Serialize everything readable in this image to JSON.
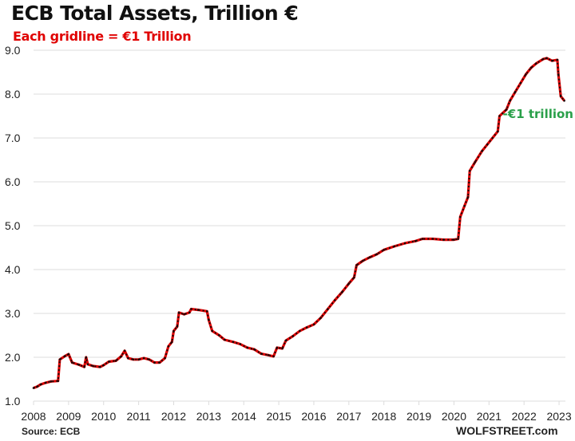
{
  "chart_data": {
    "type": "line",
    "title": "ECB Total Assets, Trillion €",
    "subtitle": "Each gridline = €1 Trillion",
    "xlabel": "",
    "ylabel": "",
    "source": "Source: ECB",
    "brand": "WOLFSTREET.com",
    "xlim": [
      2008,
      2023.15
    ],
    "ylim": [
      1.0,
      9.0
    ],
    "grid": true,
    "x_ticks": [
      "2008",
      "2009",
      "2010",
      "2011",
      "2012",
      "2013",
      "2014",
      "2015",
      "2016",
      "2017",
      "2018",
      "2019",
      "2020",
      "2021",
      "2022",
      "2023"
    ],
    "y_ticks": [
      "1.0",
      "2.0",
      "3.0",
      "4.0",
      "5.0",
      "6.0",
      "7.0",
      "8.0",
      "9.0"
    ],
    "annotations": [
      {
        "text": "-€1 trillion",
        "x": 2023.15,
        "y": 7.55,
        "color": "#2aa04a"
      }
    ],
    "series": [
      {
        "name": "ECB Total Assets",
        "color": "#e00000",
        "marker_color": "#1a0a0a",
        "points": [
          [
            2008.0,
            1.3
          ],
          [
            2008.1,
            1.33
          ],
          [
            2008.2,
            1.38
          ],
          [
            2008.35,
            1.42
          ],
          [
            2008.5,
            1.45
          ],
          [
            2008.7,
            1.46
          ],
          [
            2008.75,
            1.95
          ],
          [
            2008.9,
            2.03
          ],
          [
            2009.0,
            2.07
          ],
          [
            2009.1,
            1.88
          ],
          [
            2009.3,
            1.83
          ],
          [
            2009.45,
            1.78
          ],
          [
            2009.5,
            2.0
          ],
          [
            2009.55,
            1.84
          ],
          [
            2009.7,
            1.8
          ],
          [
            2009.9,
            1.78
          ],
          [
            2010.0,
            1.82
          ],
          [
            2010.15,
            1.9
          ],
          [
            2010.35,
            1.92
          ],
          [
            2010.5,
            2.02
          ],
          [
            2010.6,
            2.15
          ],
          [
            2010.7,
            1.98
          ],
          [
            2010.85,
            1.95
          ],
          [
            2011.0,
            1.95
          ],
          [
            2011.15,
            1.98
          ],
          [
            2011.3,
            1.95
          ],
          [
            2011.45,
            1.88
          ],
          [
            2011.6,
            1.88
          ],
          [
            2011.75,
            1.98
          ],
          [
            2011.85,
            2.25
          ],
          [
            2011.95,
            2.35
          ],
          [
            2012.0,
            2.6
          ],
          [
            2012.1,
            2.7
          ],
          [
            2012.15,
            3.02
          ],
          [
            2012.3,
            2.98
          ],
          [
            2012.45,
            3.02
          ],
          [
            2012.5,
            3.1
          ],
          [
            2012.7,
            3.08
          ],
          [
            2012.95,
            3.05
          ],
          [
            2013.0,
            2.85
          ],
          [
            2013.1,
            2.6
          ],
          [
            2013.3,
            2.5
          ],
          [
            2013.45,
            2.4
          ],
          [
            2013.7,
            2.35
          ],
          [
            2013.9,
            2.3
          ],
          [
            2014.1,
            2.22
          ],
          [
            2014.3,
            2.18
          ],
          [
            2014.5,
            2.08
          ],
          [
            2014.7,
            2.05
          ],
          [
            2014.85,
            2.02
          ],
          [
            2014.95,
            2.22
          ],
          [
            2015.1,
            2.2
          ],
          [
            2015.2,
            2.38
          ],
          [
            2015.4,
            2.48
          ],
          [
            2015.6,
            2.6
          ],
          [
            2015.8,
            2.68
          ],
          [
            2016.0,
            2.75
          ],
          [
            2016.2,
            2.9
          ],
          [
            2016.4,
            3.1
          ],
          [
            2016.6,
            3.3
          ],
          [
            2016.8,
            3.48
          ],
          [
            2017.0,
            3.68
          ],
          [
            2017.15,
            3.82
          ],
          [
            2017.22,
            4.1
          ],
          [
            2017.4,
            4.2
          ],
          [
            2017.6,
            4.28
          ],
          [
            2017.8,
            4.35
          ],
          [
            2018.0,
            4.45
          ],
          [
            2018.3,
            4.53
          ],
          [
            2018.6,
            4.6
          ],
          [
            2018.9,
            4.65
          ],
          [
            2019.1,
            4.7
          ],
          [
            2019.4,
            4.7
          ],
          [
            2019.7,
            4.68
          ],
          [
            2020.0,
            4.68
          ],
          [
            2020.12,
            4.7
          ],
          [
            2020.18,
            5.2
          ],
          [
            2020.3,
            5.45
          ],
          [
            2020.4,
            5.65
          ],
          [
            2020.45,
            6.25
          ],
          [
            2020.6,
            6.45
          ],
          [
            2020.8,
            6.7
          ],
          [
            2020.95,
            6.85
          ],
          [
            2021.1,
            7.0
          ],
          [
            2021.25,
            7.15
          ],
          [
            2021.3,
            7.5
          ],
          [
            2021.5,
            7.65
          ],
          [
            2021.6,
            7.85
          ],
          [
            2021.75,
            8.05
          ],
          [
            2021.9,
            8.25
          ],
          [
            2022.05,
            8.45
          ],
          [
            2022.2,
            8.6
          ],
          [
            2022.35,
            8.7
          ],
          [
            2022.55,
            8.8
          ],
          [
            2022.65,
            8.82
          ],
          [
            2022.8,
            8.76
          ],
          [
            2022.95,
            8.78
          ],
          [
            2022.98,
            8.45
          ],
          [
            2023.05,
            7.95
          ],
          [
            2023.15,
            7.85
          ]
        ]
      }
    ]
  }
}
